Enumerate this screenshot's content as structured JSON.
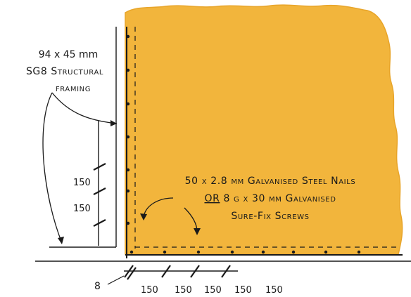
{
  "labels": {
    "framing_line1": "94 x 45 mm",
    "framing_line2": "SG8 Structural",
    "framing_line3": "framing",
    "fastener_line1": "50 x 2.8 mm Galvanised Steel Nails",
    "fastener_line2_or": "OR",
    "fastener_line2_rest": " 8 g x 30 mm Galvanised",
    "fastener_line3": "Sure-Fix Screws",
    "edge_offset": "8",
    "vertical_spacing_1": "150",
    "vertical_spacing_2": "150",
    "horizontal_spacing": [
      "150",
      "150",
      "150",
      "150",
      "150"
    ]
  },
  "colors": {
    "panel_fill": "#F2B53C",
    "panel_outline": "#E8A52A",
    "line": "#1a1a1a",
    "background": "#ffffff"
  }
}
